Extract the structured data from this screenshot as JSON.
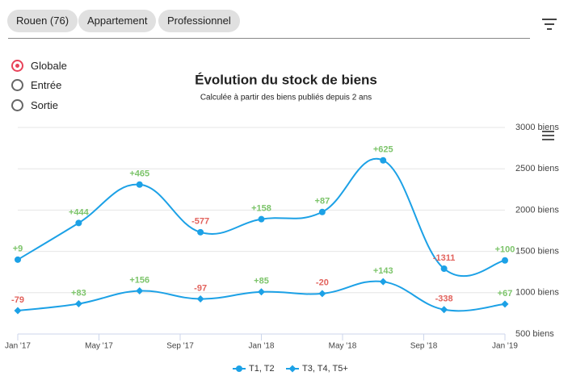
{
  "filters": [
    "Rouen (76)",
    "Appartement",
    "Professionnel"
  ],
  "modes": [
    "Globale",
    "Entrée",
    "Sortie"
  ],
  "chart_data": {
    "type": "line",
    "title": "Évolution du stock de biens",
    "subtitle": "Calculée à partir des biens publiés depuis 2 ans",
    "x": [
      "2017-01",
      "2017-04",
      "2017-07",
      "2017-10",
      "2018-01",
      "2018-04",
      "2018-07",
      "2018-10",
      "2019-01"
    ],
    "xlim": [
      "2017-01",
      "2019-01"
    ],
    "xticks": [
      {
        "value": "2017-01",
        "label": "Jan '17"
      },
      {
        "value": "2017-05",
        "label": "May '17"
      },
      {
        "value": "2017-09",
        "label": "Sep '17"
      },
      {
        "value": "2018-01",
        "label": "Jan '18"
      },
      {
        "value": "2018-05",
        "label": "May '18"
      },
      {
        "value": "2018-09",
        "label": "Sep '18"
      },
      {
        "value": "2019-01",
        "label": "Jan '19"
      }
    ],
    "ylim": [
      500,
      3000
    ],
    "yticks": [
      {
        "value": 500,
        "label": "500 biens"
      },
      {
        "value": 1000,
        "label": "1000 biens"
      },
      {
        "value": 1500,
        "label": "1500 biens"
      },
      {
        "value": 2000,
        "label": "2000 biens"
      },
      {
        "value": 2500,
        "label": "2500 biens"
      },
      {
        "value": 3000,
        "label": "3000 biens"
      }
    ],
    "grid": true,
    "positive_color": "#7cc46a",
    "negative_color": "#e2625c",
    "series": [
      {
        "name": "T1, T2",
        "color": "#1ca1e6",
        "marker": "circle",
        "values": [
          1400,
          1844,
          2309,
          1732,
          1890,
          1977,
          2602,
          1291,
          1391
        ],
        "labels": [
          "+9",
          "+444",
          "+465",
          "-577",
          "+158",
          "+87",
          "+625",
          "-1311",
          "+100"
        ]
      },
      {
        "name": "T3, T4, T5+",
        "color": "#1ca1e6",
        "marker": "diamond",
        "values": [
          783,
          866,
          1022,
          925,
          1010,
          990,
          1133,
          795,
          862
        ],
        "labels": [
          "-79",
          "+83",
          "+156",
          "-97",
          "+85",
          "-20",
          "+143",
          "-338",
          "+67"
        ]
      }
    ]
  }
}
